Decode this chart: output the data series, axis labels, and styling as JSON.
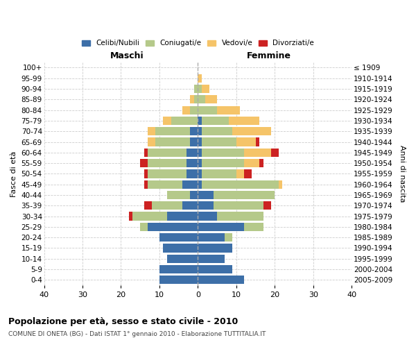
{
  "age_groups": [
    "0-4",
    "5-9",
    "10-14",
    "15-19",
    "20-24",
    "25-29",
    "30-34",
    "35-39",
    "40-44",
    "45-49",
    "50-54",
    "55-59",
    "60-64",
    "65-69",
    "70-74",
    "75-79",
    "80-84",
    "85-89",
    "90-94",
    "95-99",
    "100+"
  ],
  "birth_years": [
    "2005-2009",
    "2000-2004",
    "1995-1999",
    "1990-1994",
    "1985-1989",
    "1980-1984",
    "1975-1979",
    "1970-1974",
    "1965-1969",
    "1960-1964",
    "1955-1959",
    "1950-1954",
    "1945-1949",
    "1940-1944",
    "1935-1939",
    "1930-1934",
    "1925-1929",
    "1920-1924",
    "1915-1919",
    "1910-1914",
    "≤ 1909"
  ],
  "male": {
    "celibi": [
      10,
      10,
      8,
      9,
      10,
      13,
      8,
      4,
      2,
      4,
      3,
      3,
      3,
      2,
      2,
      0,
      0,
      0,
      0,
      0,
      0
    ],
    "coniugati": [
      0,
      0,
      0,
      0,
      0,
      2,
      9,
      8,
      6,
      9,
      10,
      10,
      10,
      9,
      9,
      7,
      2,
      1,
      1,
      0,
      0
    ],
    "vedovi": [
      0,
      0,
      0,
      0,
      0,
      0,
      0,
      0,
      0,
      0,
      0,
      0,
      0,
      2,
      2,
      2,
      2,
      1,
      0,
      0,
      0
    ],
    "divorziati": [
      0,
      0,
      0,
      0,
      0,
      0,
      1,
      2,
      0,
      1,
      1,
      2,
      1,
      0,
      0,
      0,
      0,
      0,
      0,
      0,
      0
    ]
  },
  "female": {
    "nubili": [
      12,
      9,
      7,
      9,
      7,
      12,
      5,
      4,
      4,
      1,
      1,
      1,
      1,
      1,
      1,
      1,
      0,
      0,
      0,
      0,
      0
    ],
    "coniugate": [
      0,
      0,
      0,
      0,
      2,
      5,
      12,
      13,
      16,
      20,
      9,
      11,
      11,
      9,
      8,
      7,
      5,
      2,
      1,
      0,
      0
    ],
    "vedove": [
      0,
      0,
      0,
      0,
      0,
      0,
      0,
      0,
      0,
      1,
      2,
      4,
      7,
      5,
      10,
      8,
      6,
      3,
      2,
      1,
      0
    ],
    "divorziate": [
      0,
      0,
      0,
      0,
      0,
      0,
      0,
      2,
      0,
      0,
      2,
      1,
      2,
      1,
      0,
      0,
      0,
      0,
      0,
      0,
      0
    ]
  },
  "colors": {
    "celibi": "#3d6fa8",
    "coniugati": "#b5c98a",
    "vedovi": "#f5c469",
    "divorziati": "#cc2222"
  },
  "legend_labels": [
    "Celibi/Nubili",
    "Coniugati/e",
    "Vedovi/e",
    "Divorziati/e"
  ],
  "title": "Popolazione per età, sesso e stato civile - 2010",
  "subtitle": "COMUNE DI ONETA (BG) - Dati ISTAT 1° gennaio 2010 - Elaborazione TUTTITALIA.IT",
  "xlabel_left": "Maschi",
  "xlabel_right": "Femmine",
  "ylabel_left": "Fasce di età",
  "ylabel_right": "Anni di nascita",
  "xlim": 40,
  "background_color": "#ffffff"
}
